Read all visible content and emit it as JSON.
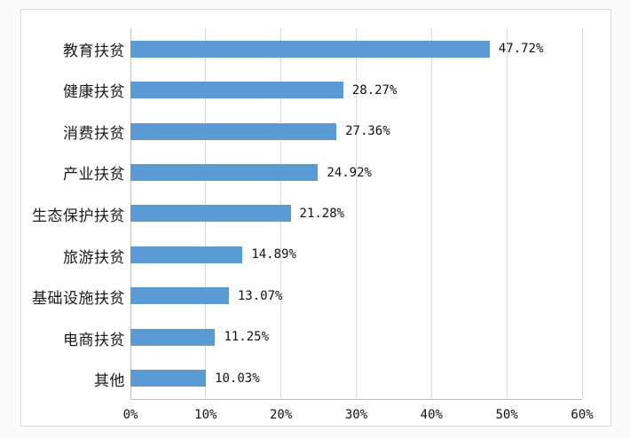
{
  "chart_data": {
    "type": "bar",
    "orientation": "horizontal",
    "title": "",
    "xlabel": "",
    "ylabel": "",
    "categories": [
      "教育扶贫",
      "健康扶贫",
      "消费扶贫",
      "产业扶贫",
      "生态保护扶贫",
      "旅游扶贫",
      "基础设施扶贫",
      "电商扶贫",
      "其他"
    ],
    "values": [
      47.72,
      28.27,
      27.36,
      24.92,
      21.28,
      14.89,
      13.07,
      11.25,
      10.03
    ],
    "value_labels": [
      "47.72%",
      "28.27%",
      "27.36%",
      "24.92%",
      "21.28%",
      "14.89%",
      "13.07%",
      "11.25%",
      "10.03%"
    ],
    "x_ticks": [
      "0%",
      "10%",
      "20%",
      "30%",
      "40%",
      "50%",
      "60%"
    ],
    "x_tick_values": [
      0,
      10,
      20,
      30,
      40,
      50,
      60
    ],
    "xlim": [
      0,
      60
    ],
    "grid": true,
    "legend": false,
    "bar_color": "#5b9bd5",
    "gridline_color": "#d9d9d9",
    "frame_border_color": "#dedcdc"
  }
}
